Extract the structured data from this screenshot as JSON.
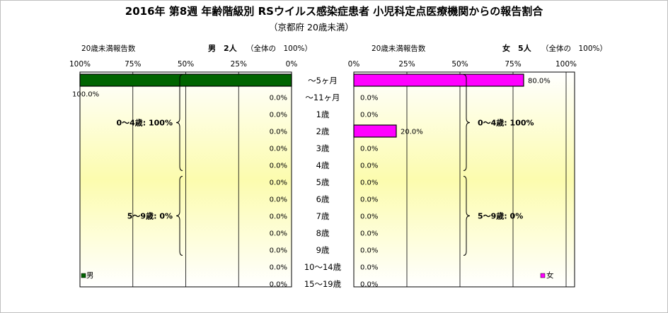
{
  "chart_data": {
    "type": "bar",
    "title": "2016年 第8週 年齢階級別 RSウイルス感染症患者 小児科定点医療機関からの報告割合",
    "subtitle": "（京都府 20歳未満）",
    "categories": [
      "～5ヶ月",
      "～11ヶ月",
      "1歳",
      "2歳",
      "3歳",
      "4歳",
      "5歳",
      "6歳",
      "7歳",
      "8歳",
      "9歳",
      "10～14歳",
      "15～19歳"
    ],
    "ticks": [
      "0%",
      "25%",
      "50%",
      "75%",
      "100%"
    ],
    "xlim": [
      0,
      100
    ],
    "panels": [
      {
        "side": "male",
        "header_left": "20歳未満報告数",
        "header_count": "男　2人",
        "header_note": "（全体の　100%）",
        "legend": "男",
        "color": "#006400",
        "direction": "left",
        "values": [
          100,
          0,
          0,
          0,
          0,
          0,
          0,
          0,
          0,
          0,
          0,
          0,
          0
        ],
        "labels": [
          "100.0%",
          "0.0%",
          "0.0%",
          "0.0%",
          "0.0%",
          "0.0%",
          "0.0%",
          "0.0%",
          "0.0%",
          "0.0%",
          "0.0%",
          "0.0%",
          "0.0%"
        ],
        "groups": [
          {
            "label": "0～4歳: 100%",
            "from": 0,
            "to": 5
          },
          {
            "label": "5～9歳: 0%",
            "from": 6,
            "to": 10
          }
        ]
      },
      {
        "side": "female",
        "header_left": "20歳未満報告数",
        "header_count": "女　5人",
        "header_note": "（全体の　100%）",
        "legend": "女",
        "color": "#ff00ff",
        "direction": "right",
        "values": [
          80,
          0,
          0,
          20,
          0,
          0,
          0,
          0,
          0,
          0,
          0,
          0,
          0
        ],
        "labels": [
          "80.0%",
          "0.0%",
          "0.0%",
          "20.0%",
          "0.0%",
          "0.0%",
          "0.0%",
          "0.0%",
          "0.0%",
          "0.0%",
          "0.0%",
          "0.0%",
          "0.0%"
        ],
        "groups": [
          {
            "label": "0～4歳: 100%",
            "from": 0,
            "to": 5
          },
          {
            "label": "5～9歳: 0%",
            "from": 6,
            "to": 10
          }
        ]
      }
    ]
  }
}
